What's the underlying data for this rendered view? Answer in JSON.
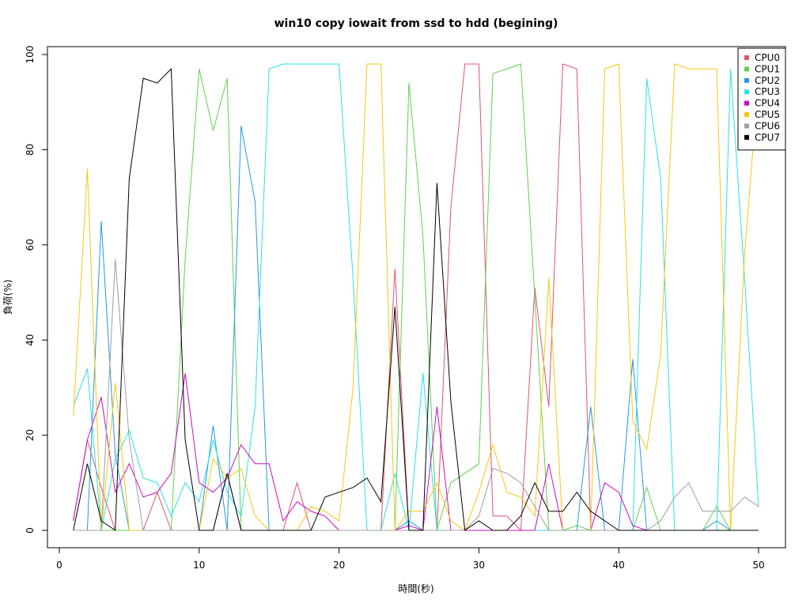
{
  "chart_data": {
    "type": "line",
    "title": "win10 copy iowait from ssd to hdd (begining)",
    "xlabel": "時間(秒)",
    "ylabel": "負荷(%)",
    "xlim": [
      0,
      52
    ],
    "ylim": [
      0,
      100
    ],
    "x_ticks": [
      0,
      10,
      20,
      30,
      40,
      50
    ],
    "y_ticks": [
      0,
      20,
      40,
      60,
      80,
      100
    ],
    "grid": false,
    "legend_position": "top-right",
    "x": [
      1,
      2,
      3,
      4,
      5,
      6,
      7,
      8,
      9,
      10,
      11,
      12,
      13,
      14,
      15,
      16,
      17,
      18,
      19,
      20,
      21,
      22,
      23,
      24,
      25,
      26,
      27,
      28,
      29,
      30,
      31,
      32,
      33,
      34,
      35,
      36,
      37,
      38,
      39,
      40,
      41,
      42,
      43,
      44,
      45,
      46,
      47,
      48,
      49,
      50
    ],
    "series": [
      {
        "name": "CPU0",
        "color": "#df536b",
        "values": [
          2,
          19,
          9,
          0,
          0,
          0,
          8,
          0,
          0,
          0,
          0,
          12,
          0,
          0,
          0,
          0,
          10,
          0,
          0,
          0,
          0,
          0,
          0,
          55,
          0,
          0,
          0,
          68,
          98,
          98,
          3,
          3,
          0,
          51,
          26,
          98,
          97,
          0,
          0,
          0,
          0,
          0,
          0,
          0,
          0,
          0,
          0,
          0,
          0,
          0
        ]
      },
      {
        "name": "CPU1",
        "color": "#61d04f",
        "values": [
          0,
          0,
          0,
          0,
          0,
          0,
          0,
          0,
          57,
          97,
          84,
          95,
          0,
          0,
          0,
          0,
          0,
          0,
          0,
          0,
          0,
          0,
          0,
          0,
          94,
          62,
          0,
          10,
          12,
          14,
          96,
          97,
          98,
          49,
          0,
          0,
          1,
          0,
          0,
          0,
          0,
          9,
          0,
          0,
          0,
          0,
          5,
          0,
          0,
          0
        ]
      },
      {
        "name": "CPU2",
        "color": "#2297e6",
        "values": [
          0,
          0,
          65,
          16,
          0,
          0,
          0,
          0,
          0,
          0,
          22,
          0,
          85,
          69,
          0,
          0,
          0,
          0,
          0,
          0,
          0,
          0,
          0,
          0,
          2,
          0,
          0,
          0,
          0,
          0,
          0,
          0,
          0,
          0,
          0,
          0,
          0,
          26,
          0,
          0,
          36,
          0,
          0,
          0,
          0,
          0,
          2,
          0,
          0,
          0
        ]
      },
      {
        "name": "CPU3",
        "color": "#28e2e5",
        "values": [
          26,
          34,
          0,
          15,
          21,
          11,
          10,
          3,
          10,
          6,
          19,
          8,
          3,
          26,
          97,
          98,
          98,
          98,
          98,
          98,
          53,
          0,
          0,
          12,
          0,
          33,
          0,
          0,
          0,
          0,
          0,
          0,
          0,
          0,
          0,
          0,
          0,
          0,
          0,
          0,
          0,
          95,
          74,
          0,
          0,
          0,
          0,
          97,
          53,
          5
        ]
      },
      {
        "name": "CPU4",
        "color": "#cd0bbc",
        "values": [
          2,
          19,
          28,
          8,
          14,
          7,
          8,
          12,
          33,
          10,
          8,
          11,
          18,
          14,
          14,
          2,
          6,
          4,
          3,
          0,
          0,
          0,
          0,
          0,
          1,
          0,
          26,
          0,
          0,
          0,
          0,
          0,
          0,
          0,
          14,
          0,
          0,
          0,
          10,
          8,
          1,
          0,
          0,
          0,
          0,
          0,
          0,
          0,
          0,
          0
        ]
      },
      {
        "name": "CPU5",
        "color": "#f5c710",
        "values": [
          24,
          76,
          0,
          31,
          0,
          0,
          0,
          0,
          0,
          0,
          15,
          11,
          13,
          3,
          0,
          0,
          0,
          5,
          4,
          2,
          30,
          98,
          98,
          0,
          4,
          4,
          10,
          2,
          0,
          8,
          18,
          8,
          7,
          3,
          53,
          0,
          0,
          0,
          97,
          98,
          23,
          17,
          37,
          98,
          97,
          97,
          97,
          0,
          58,
          95
        ]
      },
      {
        "name": "CPU6",
        "color": "#9e9e9e",
        "values": [
          0,
          0,
          0,
          57,
          19,
          0,
          0,
          0,
          0,
          0,
          0,
          0,
          0,
          0,
          0,
          0,
          0,
          0,
          0,
          0,
          0,
          0,
          0,
          0,
          0,
          0,
          0,
          0,
          0,
          3,
          13,
          12,
          10,
          5,
          0,
          0,
          0,
          0,
          0,
          0,
          0,
          0,
          2,
          7,
          10,
          4,
          4,
          4,
          7,
          5
        ]
      },
      {
        "name": "CPU7",
        "color": "#000000",
        "values": [
          0,
          14,
          2,
          0,
          74,
          95,
          94,
          97,
          19,
          0,
          0,
          12,
          0,
          0,
          0,
          0,
          0,
          0,
          7,
          8,
          9,
          11,
          6,
          47,
          0,
          0,
          73,
          27,
          0,
          2,
          0,
          0,
          3,
          10,
          4,
          4,
          8,
          4,
          2,
          0,
          0,
          0,
          0,
          0,
          0,
          0,
          0,
          0,
          0,
          0
        ]
      }
    ]
  }
}
